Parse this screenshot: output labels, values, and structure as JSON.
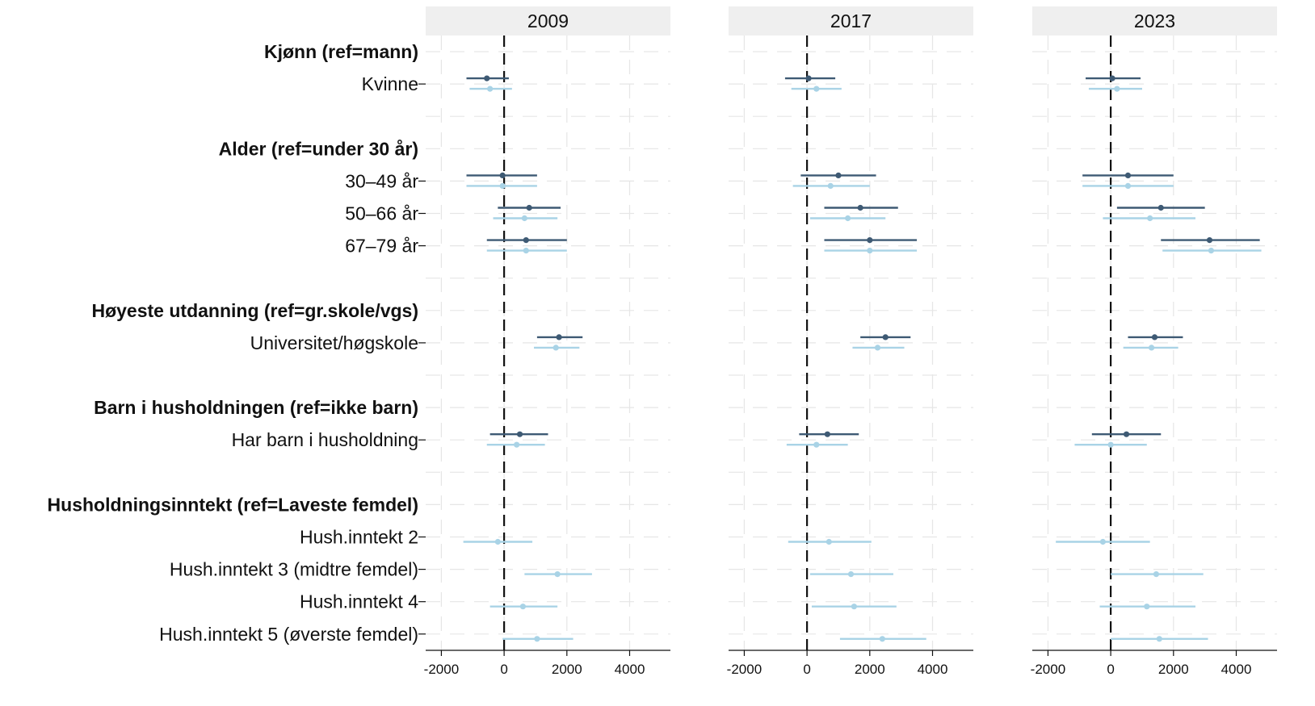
{
  "colors": {
    "series_1": "#3e5a74",
    "series_2": "#a9d3e6",
    "grid": "#e6e6e6",
    "strip": "#efefef"
  },
  "chart_data": {
    "type": "scatter",
    "subtype": "coefficient-plot",
    "xlim": [
      -2500,
      5300
    ],
    "xticks": [
      -2000,
      0,
      2000,
      4000
    ],
    "xtick_labels": [
      "-2000",
      "0",
      "2000",
      "4000"
    ],
    "reference_line": 0,
    "grid": true,
    "rows": [
      {
        "label": "Kjønn (ref=mann)",
        "kind": "header"
      },
      {
        "label": "Kvinne",
        "kind": "item"
      },
      {
        "label": "",
        "kind": "blank"
      },
      {
        "label": "Alder (ref=under 30 år)",
        "kind": "header"
      },
      {
        "label": "30–49 år",
        "kind": "item"
      },
      {
        "label": "50–66 år",
        "kind": "item"
      },
      {
        "label": "67–79 år",
        "kind": "item"
      },
      {
        "label": "",
        "kind": "blank"
      },
      {
        "label": "Høyeste utdanning (ref=gr.skole/vgs)",
        "kind": "header"
      },
      {
        "label": "Universitet/høgskole",
        "kind": "item"
      },
      {
        "label": "",
        "kind": "blank"
      },
      {
        "label": "Barn i husholdningen (ref=ikke barn)",
        "kind": "header"
      },
      {
        "label": "Har barn i husholdning",
        "kind": "item"
      },
      {
        "label": "",
        "kind": "blank"
      },
      {
        "label": "Husholdningsinntekt (ref=Laveste femdel)",
        "kind": "header"
      },
      {
        "label": "Hush.inntekt 2",
        "kind": "item"
      },
      {
        "label": "Hush.inntekt 3 (midtre femdel)",
        "kind": "item"
      },
      {
        "label": "Hush.inntekt 4",
        "kind": "item"
      },
      {
        "label": "Hush.inntekt 5 (øverste femdel)",
        "kind": "item"
      }
    ],
    "panels": [
      {
        "title": "2009",
        "series_1": {
          "Kvinne": [
            -550,
            -1200,
            150
          ],
          "30–49 år": [
            -50,
            -1200,
            1050
          ],
          "50–66 år": [
            800,
            -200,
            1800
          ],
          "67–79 år": [
            700,
            -550,
            2000
          ],
          "Universitet/høgskole": [
            1750,
            1050,
            2500
          ],
          "Har barn i husholdning": [
            500,
            -450,
            1400
          ]
        },
        "series_2": {
          "Kvinne": [
            -450,
            -1100,
            250
          ],
          "30–49 år": [
            -50,
            -1200,
            1050
          ],
          "50–66 år": [
            650,
            -350,
            1700
          ],
          "67–79 år": [
            700,
            -550,
            2000
          ],
          "Universitet/høgskole": [
            1650,
            950,
            2400
          ],
          "Har barn i husholdning": [
            400,
            -550,
            1300
          ],
          "Hush.inntekt 2": [
            -200,
            -1300,
            900
          ],
          "Hush.inntekt 3 (midtre femdel)": [
            1700,
            650,
            2800
          ],
          "Hush.inntekt 4": [
            600,
            -450,
            1700
          ],
          "Hush.inntekt 5 (øverste femdel)": [
            1050,
            -50,
            2200
          ]
        }
      },
      {
        "title": "2017",
        "series_1": {
          "Kvinne": [
            50,
            -700,
            900
          ],
          "30–49 år": [
            1000,
            -200,
            2200
          ],
          "50–66 år": [
            1700,
            550,
            2900
          ],
          "67–79 år": [
            2000,
            550,
            3500
          ],
          "Universitet/høgskole": [
            2500,
            1700,
            3300
          ],
          "Har barn i husholdning": [
            650,
            -250,
            1650
          ]
        },
        "series_2": {
          "Kvinne": [
            300,
            -500,
            1100
          ],
          "30–49 år": [
            750,
            -450,
            2000
          ],
          "50–66 år": [
            1300,
            100,
            2500
          ],
          "67–79 år": [
            2000,
            550,
            3500
          ],
          "Universitet/høgskole": [
            2250,
            1450,
            3100
          ],
          "Har barn i husholdning": [
            300,
            -650,
            1300
          ],
          "Hush.inntekt 2": [
            700,
            -600,
            2050
          ],
          "Hush.inntekt 3 (midtre femdel)": [
            1400,
            100,
            2750
          ],
          "Hush.inntekt 4": [
            1500,
            150,
            2850
          ],
          "Hush.inntekt 5 (øverste femdel)": [
            2400,
            1050,
            3800
          ]
        }
      },
      {
        "title": "2023",
        "series_1": {
          "Kvinne": [
            50,
            -800,
            950
          ],
          "30–49 år": [
            550,
            -900,
            2000
          ],
          "50–66 år": [
            1600,
            200,
            3000
          ],
          "67–79 år": [
            3150,
            1600,
            4750
          ],
          "Universitet/høgskole": [
            1400,
            550,
            2300
          ],
          "Har barn i husholdning": [
            500,
            -600,
            1600
          ]
        },
        "series_2": {
          "Kvinne": [
            200,
            -700,
            1000
          ],
          "30–49 år": [
            550,
            -900,
            2000
          ],
          "50–66 år": [
            1250,
            -250,
            2700
          ],
          "67–79 år": [
            3200,
            1650,
            4800
          ],
          "Universitet/høgskole": [
            1300,
            400,
            2150
          ],
          "Har barn i husholdning": [
            0,
            -1150,
            1150
          ],
          "Hush.inntekt 2": [
            -250,
            -1750,
            1250
          ],
          "Hush.inntekt 3 (midtre femdel)": [
            1450,
            0,
            2950
          ],
          "Hush.inntekt 4": [
            1150,
            -350,
            2700
          ],
          "Hush.inntekt 5 (øverste femdel)": [
            1550,
            0,
            3100
          ]
        }
      }
    ]
  }
}
